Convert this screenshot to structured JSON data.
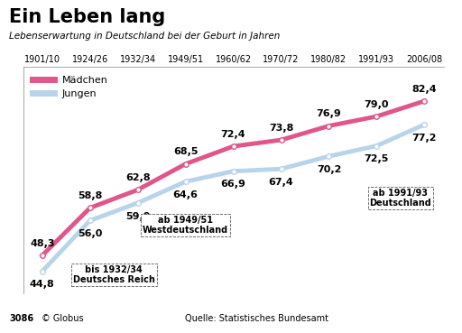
{
  "chart_data": {
    "type": "line",
    "title": "Ein Leben lang",
    "subtitle": "Lebenserwartung in Deutschland bei der Geburt in Jahren",
    "categories": [
      "1901/10",
      "1924/26",
      "1932/34",
      "1949/51",
      "1960/62",
      "1970/72",
      "1980/82",
      "1991/93",
      "2006/08"
    ],
    "series": [
      {
        "name": "Mädchen",
        "color": "#e0568a",
        "values": [
          48.3,
          58.8,
          62.8,
          68.5,
          72.4,
          73.8,
          76.9,
          79.0,
          82.4
        ],
        "value_labels": [
          "48,3",
          "58,8",
          "62,8",
          "68,5",
          "72,4",
          "73,8",
          "76,9",
          "79,0",
          "82,4"
        ]
      },
      {
        "name": "Jungen",
        "color": "#b8d4ea",
        "values": [
          44.8,
          56.0,
          59.9,
          64.6,
          66.9,
          67.4,
          70.2,
          72.5,
          77.2
        ],
        "value_labels": [
          "44,8",
          "56,0",
          "59,9",
          "64,6",
          "66,9",
          "67,4",
          "70,2",
          "72,5",
          "77,2"
        ]
      }
    ],
    "ylim": [
      40,
      90
    ],
    "yticks": [],
    "tick_labels": "x",
    "data_labels": true,
    "legend": "upper left",
    "annotations": [
      "bis 1932/34\nDeutsches Reich",
      "ab 1949/51\nWestdeutschland",
      "ab 1991/93\nDeutschland"
    ],
    "source": "Quelle: Statistisches Bundesamt",
    "credit": "© Globus",
    "graphic_number": "3086"
  }
}
